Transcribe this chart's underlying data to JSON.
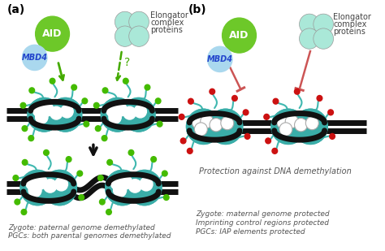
{
  "background_color": "#ffffff",
  "panel_a_label": "(a)",
  "panel_b_label": "(b)",
  "aid_color": "#6dc829",
  "aid_text": "AID",
  "mbd4_color": "#aad8ee",
  "mbd4_text": "MBD4",
  "elongator_color": "#aae8d8",
  "elongator_text_line1": "Elongator",
  "elongator_text_line2": "complex",
  "elongator_text_line3": "proteins",
  "nucleosome_teal": "#3aada8",
  "nucleosome_pink": "#f0b0d0",
  "nucleosome_white": "#ffffff",
  "dna_color": "#111111",
  "tail_color": "#40b8b0",
  "methyl_green": "#44bb00",
  "methyl_red": "#cc1111",
  "arrow_green": "#44aa00",
  "arrow_black": "#111111",
  "inhibit_color": "#cc5555",
  "question_mark": "?",
  "text_a_bottom1": "Zygote: paternal genome demethylated",
  "text_a_bottom2": "PGCs: both parental genomes demethylated",
  "text_b_middle": "Protection against DNA demethylation",
  "text_b_bottom1": "Zygote: maternal genome protected",
  "text_b_bottom2": "Imprinting control regions protected",
  "text_b_bottom3": "PGCs: IAP elements protected",
  "font_size_label": 9,
  "font_size_protein": 8,
  "font_size_bottom": 6.5
}
